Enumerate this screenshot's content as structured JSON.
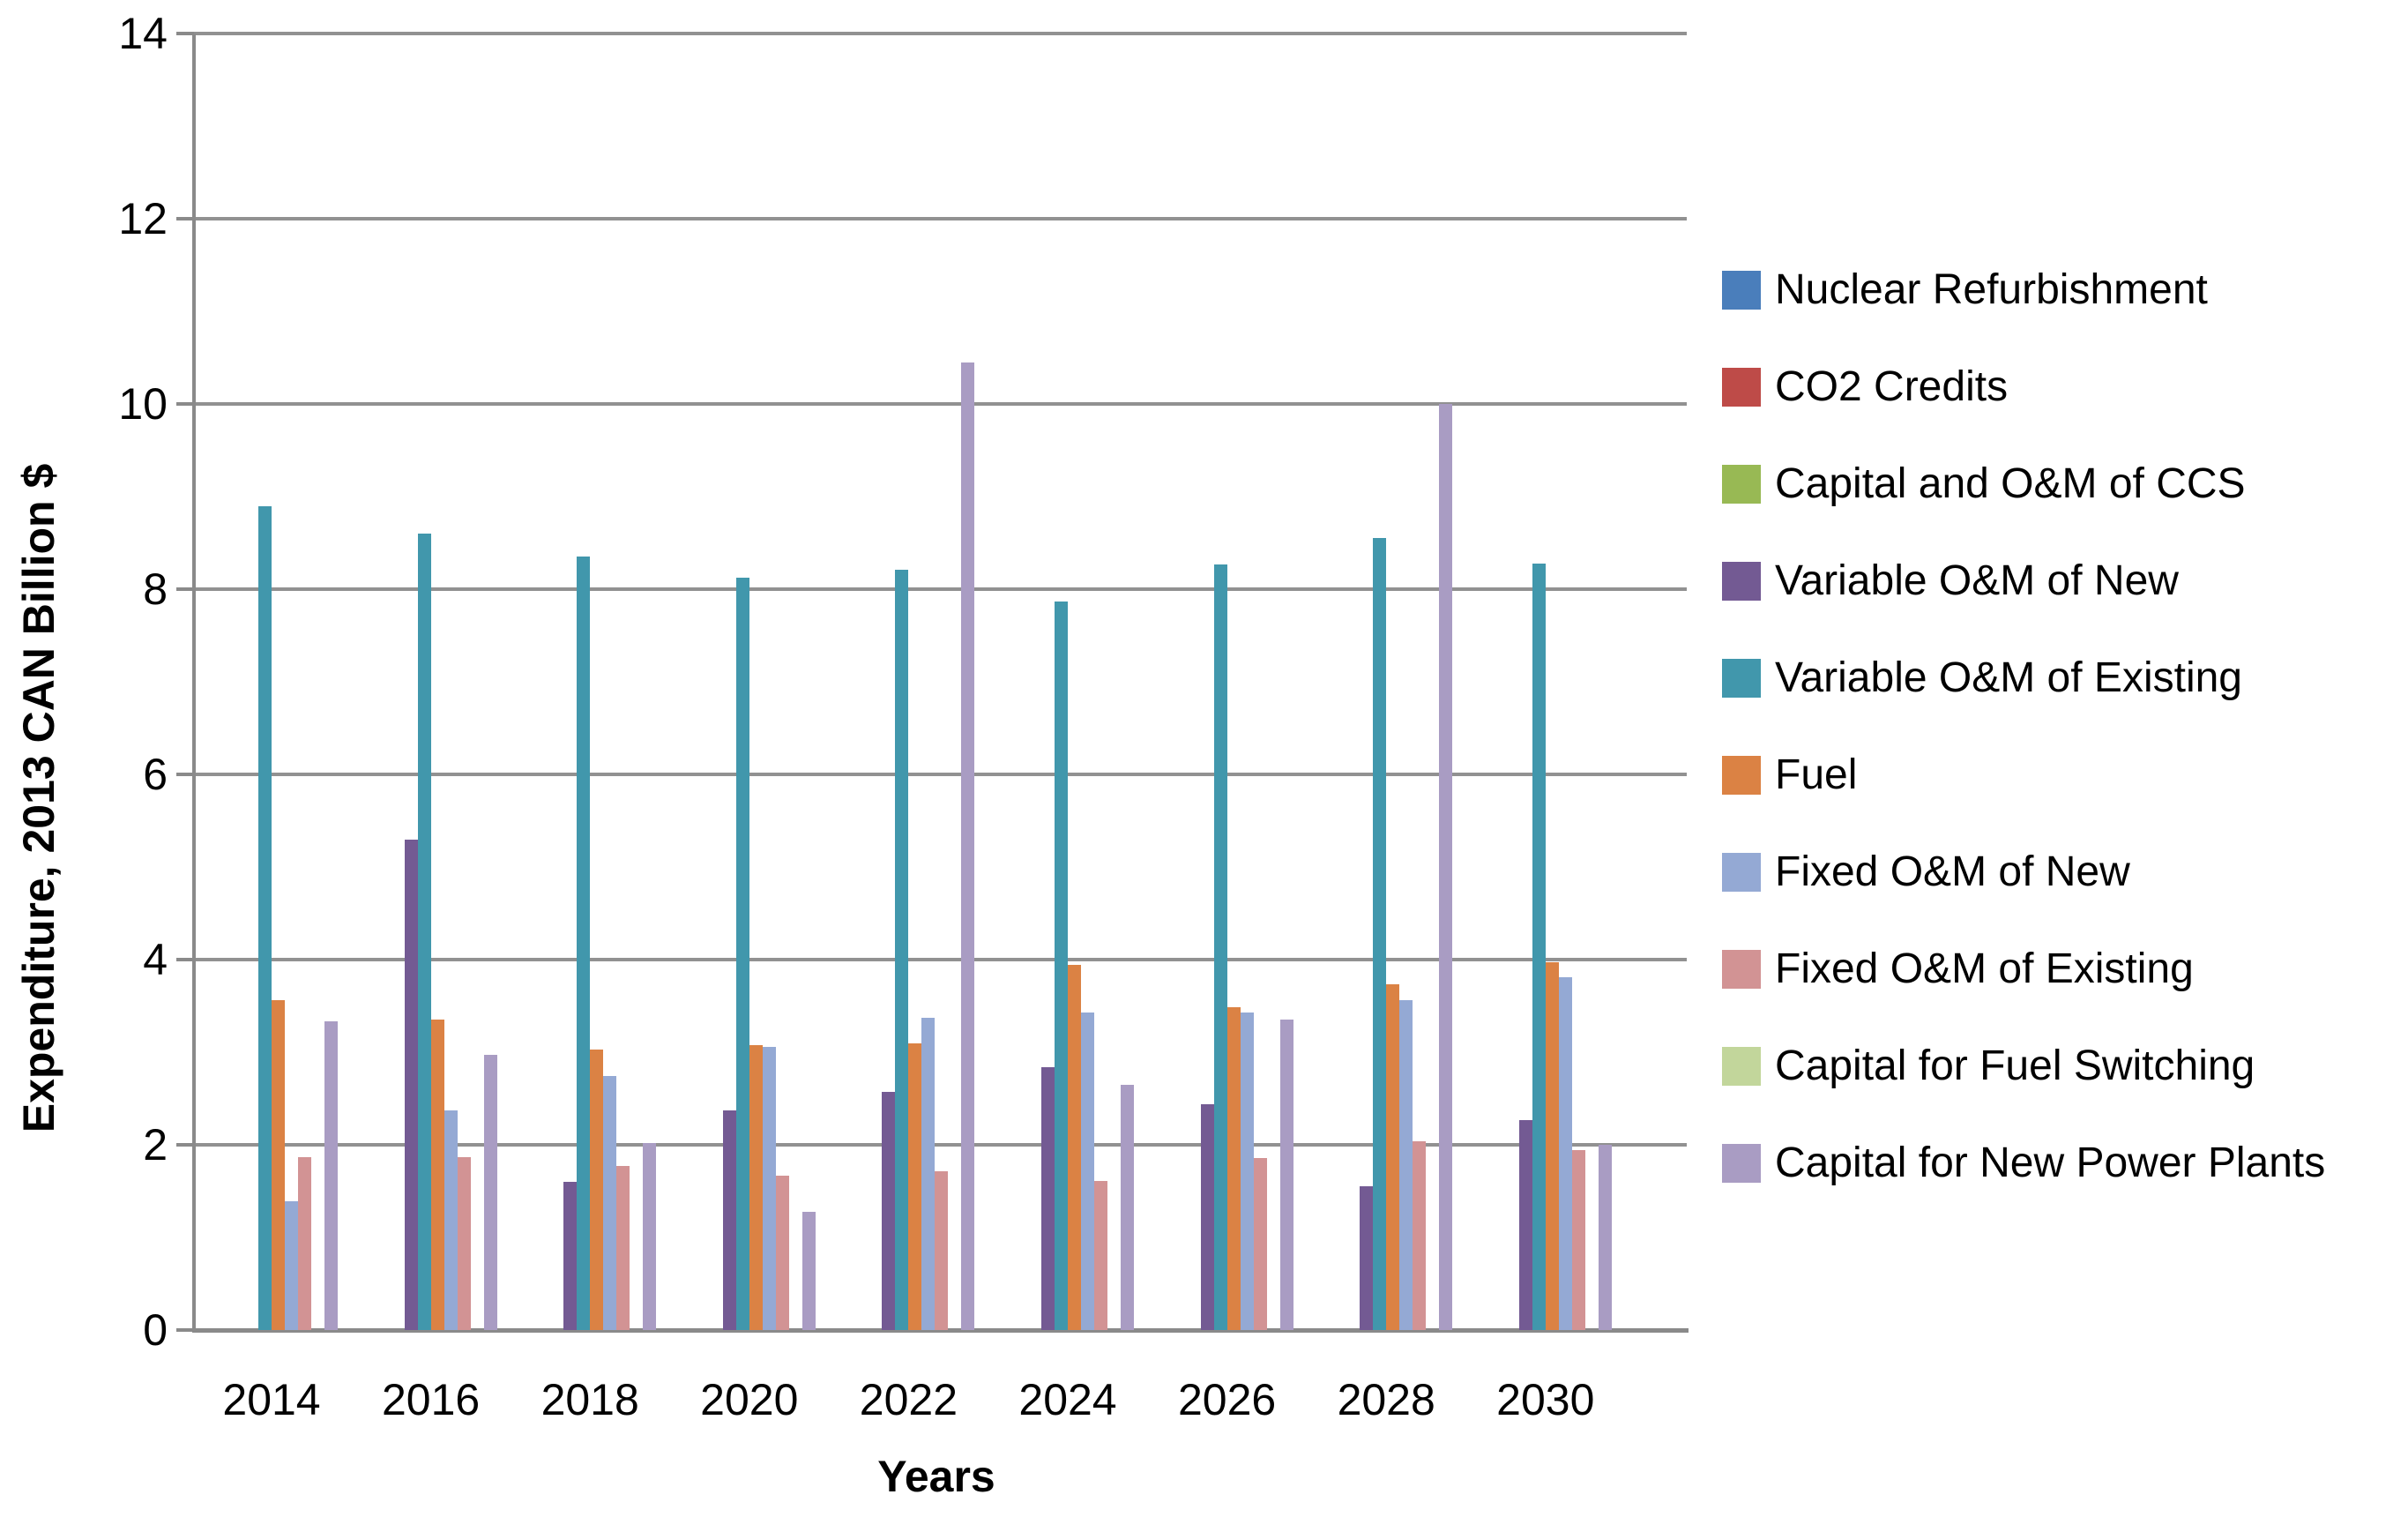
{
  "chart_data": {
    "type": "bar",
    "title": "",
    "xlabel": "Years",
    "ylabel": "Expenditure, 2013 CAN Billion $",
    "ylim": [
      0,
      14
    ],
    "yticks": [
      0,
      2,
      4,
      6,
      8,
      10,
      12,
      14
    ],
    "grid": "horizontal",
    "legend_position": "right",
    "categories": [
      "2014",
      "2016",
      "2018",
      "2020",
      "2022",
      "2024",
      "2026",
      "2028",
      "2030"
    ],
    "series": [
      {
        "name": "Nuclear Refurbishment",
        "color": "#4A7EBB",
        "values": [
          0,
          0,
          0,
          0,
          0,
          0,
          0,
          0,
          0
        ]
      },
      {
        "name": "CO2 Credits",
        "color": "#BE4B48",
        "values": [
          0,
          0,
          0,
          0,
          0,
          0,
          0,
          0,
          0
        ]
      },
      {
        "name": "Capital and O&M of CCS",
        "color": "#98B954",
        "values": [
          0,
          0,
          0,
          0,
          0,
          0,
          0,
          0,
          0
        ]
      },
      {
        "name": "Variable  O&M of New",
        "color": "#735A93",
        "values": [
          0,
          5.3,
          1.6,
          2.37,
          2.57,
          2.84,
          2.44,
          1.55,
          2.27
        ]
      },
      {
        "name": "Variable O&M of Existing",
        "color": "#4197AC",
        "values": [
          8.9,
          8.6,
          8.35,
          8.12,
          8.21,
          7.87,
          8.27,
          8.55,
          8.28
        ]
      },
      {
        "name": "Fuel",
        "color": "#DB8244",
        "values": [
          3.56,
          3.35,
          3.03,
          3.08,
          3.1,
          3.94,
          3.49,
          3.73,
          3.97
        ]
      },
      {
        "name": "Fixed O&M of New",
        "color": "#94A9D4",
        "values": [
          1.39,
          2.37,
          2.74,
          3.06,
          3.37,
          3.43,
          3.43,
          3.56,
          3.81
        ]
      },
      {
        "name": "Fixed O&M of Existing",
        "color": "#D29394",
        "values": [
          1.87,
          1.87,
          1.77,
          1.67,
          1.71,
          1.61,
          1.86,
          2.04,
          1.94
        ]
      },
      {
        "name": "Capital for Fuel Switching",
        "color": "#C2D69B",
        "values": [
          0,
          0,
          0,
          0,
          0,
          0,
          0,
          0,
          0
        ]
      },
      {
        "name": "Capital for New Power Plants",
        "color": "#A99CC3",
        "values": [
          3.33,
          2.97,
          2.02,
          1.28,
          10.45,
          2.65,
          3.35,
          10.0,
          2.0
        ]
      }
    ]
  }
}
